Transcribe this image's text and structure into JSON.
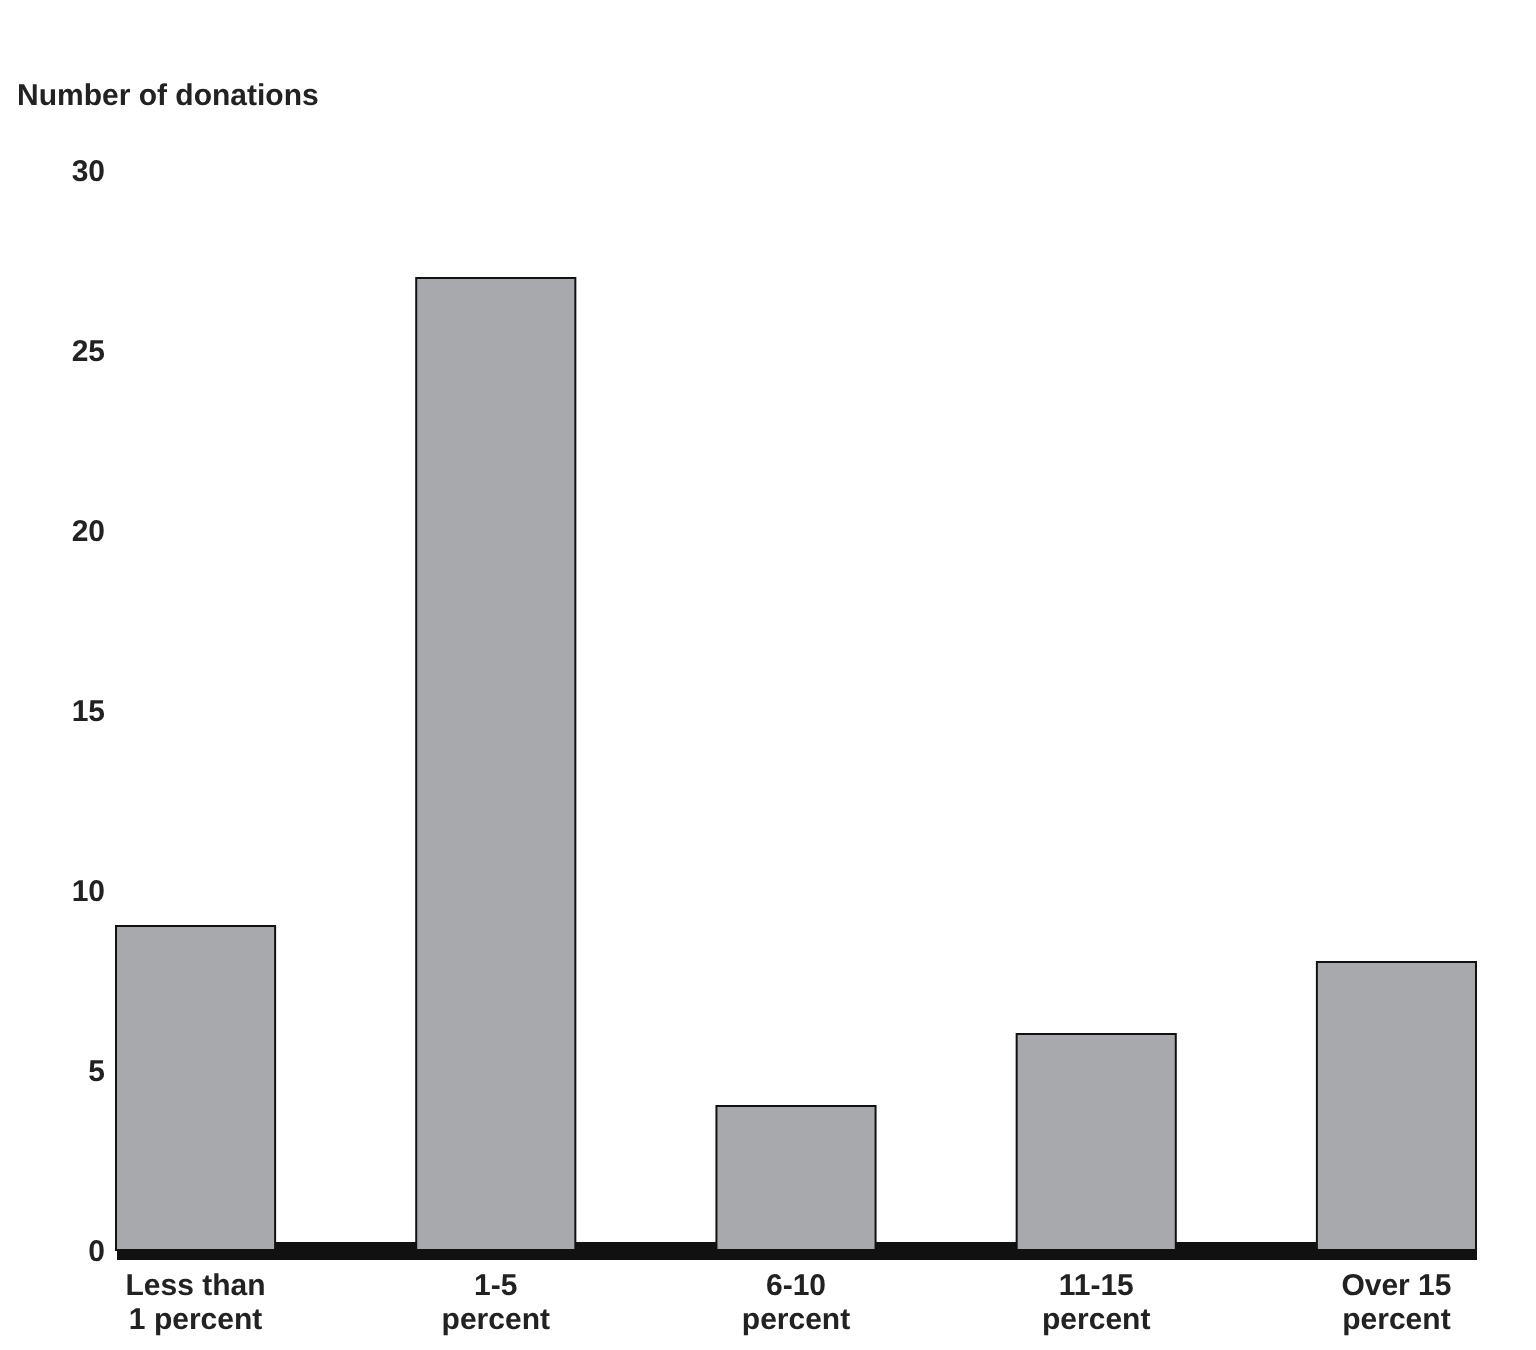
{
  "chart_data": {
    "type": "bar",
    "ylabel": "Number of donations",
    "categories": [
      "Less than 1 percent",
      "1-5 percent",
      "6-10 percent",
      "11-15 percent",
      "Over 15 percent"
    ],
    "values": [
      9,
      27,
      4,
      6,
      8
    ],
    "color": "#a7a9ac",
    "ylim": [
      0,
      30
    ],
    "yticks": [
      0,
      5,
      10,
      15,
      20,
      25,
      30
    ],
    "grid": false
  }
}
